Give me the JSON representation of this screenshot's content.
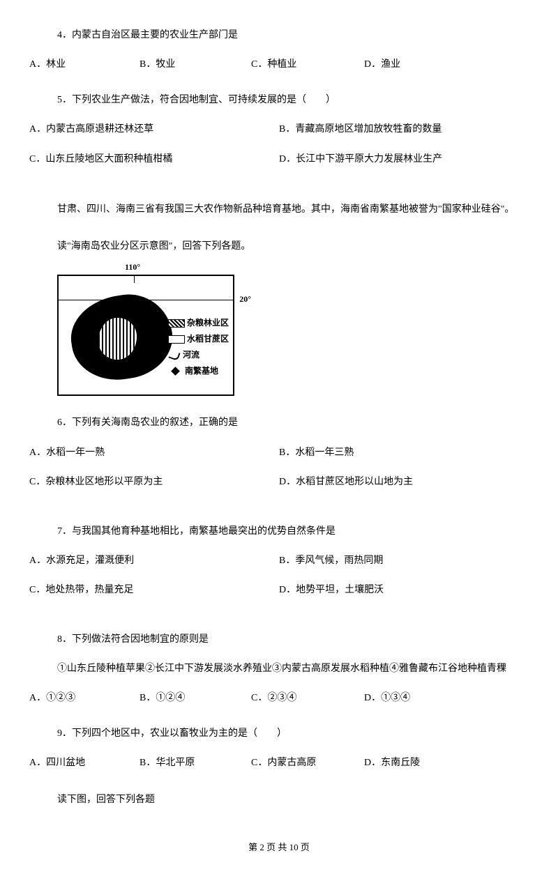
{
  "q4": {
    "text": "4．内蒙古自治区最主要的农业生产部门是",
    "options": {
      "a": "A．林业",
      "b": "B．牧业",
      "c": "C．种植业",
      "d": "D．渔业"
    }
  },
  "q5": {
    "text": "5．下列农业生产做法，符合因地制宜、可持续发展的是（　　）",
    "options": {
      "a": "A．内蒙古高原退耕还林还草",
      "b": "B．青藏高原地区增加放牧牲畜的数量",
      "c": "C．山东丘陵地区大面积种植柑橘",
      "d": "D．长江中下游平原大力发展林业生产"
    }
  },
  "context1": {
    "line1": "甘肃、四川、海南三省有我国三大农作物新品种培育基地。其中，海南省南繁基地被誉为\"国家种业硅谷\"。",
    "line2": "读\"海南岛农业分区示意图\"，回答下列各题。"
  },
  "map": {
    "lon": "110°",
    "lat": "20°",
    "legend": {
      "l1": "杂粮林业区",
      "l2": "水稻甘蔗区",
      "l3": "河流",
      "l4": "南繁基地"
    }
  },
  "q6": {
    "text": "6．下列有关海南岛农业的叙述，正确的是",
    "options": {
      "a": "A．水稻一年一熟",
      "b": "B．水稻一年三熟",
      "c": "C．杂粮林业区地形以平原为主",
      "d": "D．水稻甘蔗区地形以山地为主"
    }
  },
  "q7": {
    "text": "7．与我国其他育种基地相比，南繁基地最突出的优势自然条件是",
    "options": {
      "a": "A．水源充足，灌溉便利",
      "b": "B．季风气候，雨热同期",
      "c": "C．地处热带，热量充足",
      "d": "D．地势平坦，土壤肥沃"
    }
  },
  "q8": {
    "text": "8．下列做法符合因地制宜的原则是",
    "subtext": "①山东丘陵种植苹果②长江中下游发展淡水养殖业③内蒙古高原发展水稻种植④雅鲁藏布江谷地种植青稞",
    "options": {
      "a": "A．①②③",
      "b": "B．①②④",
      "c": "C．②③④",
      "d": "D．①③④"
    }
  },
  "q9": {
    "text": "9．下列四个地区中，农业以畜牧业为主的是（　　）",
    "options": {
      "a": "A．四川盆地",
      "b": "B．华北平原",
      "c": "C．内蒙古高原",
      "d": "D．东南丘陵"
    }
  },
  "context2": "读下图，回答下列各题",
  "footer": "第 2 页 共 10 页"
}
